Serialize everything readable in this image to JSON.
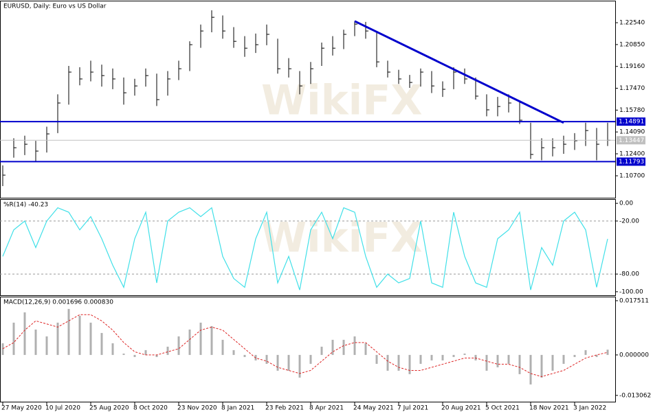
{
  "watermark": "WikiFX",
  "chart_data": [
    {
      "type": "ohlc",
      "title": "EURUSD, Daily:  Euro vs US Dollar",
      "categories": [
        "27 May 2020",
        null,
        null,
        null,
        "10 Jul 2020",
        null,
        null,
        null,
        "25 Aug 2020",
        null,
        null,
        null,
        "8 Oct 2020",
        null,
        null,
        null,
        "23 Nov 2020",
        null,
        null,
        null,
        "8 Jan 2021",
        null,
        null,
        null,
        "23 Feb 2021",
        null,
        null,
        null,
        "8 Apr 2021",
        null,
        null,
        null,
        "24 May 2021",
        null,
        null,
        null,
        "7 Jul 2021",
        null,
        null,
        null,
        "20 Aug 2021",
        null,
        null,
        null,
        "5 Oct 2021",
        null,
        null,
        null,
        "18 Nov 2021",
        null,
        null,
        null,
        "3 Jan 2022",
        null,
        null,
        null
      ],
      "high": [
        1.115,
        1.136,
        1.138,
        1.134,
        1.145,
        1.17,
        1.192,
        1.191,
        1.196,
        1.193,
        1.19,
        1.183,
        1.182,
        1.19,
        1.186,
        1.188,
        1.196,
        1.211,
        1.224,
        1.235,
        1.231,
        1.222,
        1.215,
        1.217,
        1.224,
        1.213,
        1.198,
        1.188,
        1.195,
        1.21,
        1.215,
        1.22,
        1.2266,
        1.226,
        1.218,
        1.196,
        1.189,
        1.185,
        1.19,
        1.188,
        1.18,
        1.191,
        1.19,
        1.183,
        1.17,
        1.168,
        1.17,
        1.165,
        1.148,
        1.136,
        1.136,
        1.138,
        1.14,
        1.148,
        1.144,
        1.148
      ],
      "low": [
        1.099,
        1.121,
        1.123,
        1.118,
        1.125,
        1.14,
        1.162,
        1.177,
        1.18,
        1.176,
        1.174,
        1.162,
        1.169,
        1.176,
        1.161,
        1.169,
        1.181,
        1.188,
        1.206,
        1.218,
        1.213,
        1.206,
        1.199,
        1.202,
        1.208,
        1.186,
        1.183,
        1.17,
        1.178,
        1.192,
        1.2,
        1.205,
        1.215,
        1.213,
        1.191,
        1.183,
        1.178,
        1.175,
        1.176,
        1.171,
        1.168,
        1.174,
        1.178,
        1.166,
        1.153,
        1.153,
        1.156,
        1.147,
        1.12,
        1.119,
        1.122,
        1.124,
        1.127,
        1.13,
        1.119,
        1.13
      ],
      "close": [
        1.1075,
        1.1287,
        1.1314,
        1.1261,
        1.1394,
        1.1633,
        1.1872,
        1.1819,
        1.1872,
        1.1845,
        1.1819,
        1.1712,
        1.1765,
        1.1845,
        1.1659,
        1.1819,
        1.1898,
        1.2084,
        1.219,
        1.2296,
        1.219,
        1.211,
        1.2057,
        1.2084,
        1.2164,
        1.1898,
        1.1898,
        1.1765,
        1.1898,
        1.2057,
        1.2057,
        1.2164,
        1.2243,
        1.219,
        1.1951,
        1.1872,
        1.1819,
        1.1792,
        1.1872,
        1.1765,
        1.1739,
        1.1872,
        1.1819,
        1.1686,
        1.158,
        1.1606,
        1.1633,
        1.15,
        1.1235,
        1.1287,
        1.1287,
        1.1314,
        1.1341,
        1.142,
        1.1314,
        1.13447
      ],
      "color": "#000000",
      "levels": [
        1.14891,
        1.11793
      ],
      "level_color": "#0000cc",
      "trendline": {
        "x": [
          32,
          51
        ],
        "values": [
          1.2266,
          1.148
        ]
      },
      "ylim": [
        1.09,
        1.2419
      ],
      "yticks": [
        {
          "value": 1.2254,
          "label": "1.22540"
        },
        {
          "value": 1.2085,
          "label": "1.20850"
        },
        {
          "value": 1.1916,
          "label": "1.19160"
        },
        {
          "value": 1.1747,
          "label": "1.17470"
        },
        {
          "value": 1.1578,
          "label": "1.15780"
        },
        {
          "value": 1.1409,
          "label": "1.14090"
        },
        {
          "value": 1.124,
          "label": "1.12400"
        },
        {
          "value": 1.107,
          "label": "1.10700"
        }
      ]
    },
    {
      "type": "line",
      "title": "%R(14) -40.23",
      "color": "#40e0e8",
      "values": [
        -60,
        -30,
        -20,
        -50,
        -20,
        -5,
        -10,
        -30,
        -15,
        -40,
        -70,
        -95,
        -40,
        -10,
        -90,
        -20,
        -10,
        -5,
        -15,
        -5,
        -60,
        -85,
        -95,
        -40,
        -10,
        -90,
        -60,
        -98,
        -30,
        -10,
        -40,
        -5,
        -10,
        -60,
        -95,
        -80,
        -90,
        -85,
        -20,
        -90,
        -95,
        -10,
        -60,
        -90,
        -95,
        -40,
        -30,
        -10,
        -98,
        -50,
        -70,
        -20,
        -10,
        -30,
        -95,
        -40.23
      ],
      "levels": [
        -20,
        -80
      ],
      "ylim": [
        -104,
        4
      ],
      "yticks": [
        {
          "value": 0,
          "label": "0.00"
        },
        {
          "value": -20,
          "label": "-20.00"
        },
        {
          "value": -80,
          "label": "-80.00"
        },
        {
          "value": -100,
          "label": "-100.00"
        }
      ]
    },
    {
      "type": "macd",
      "title": "MACD(12,26,9) 0.001696 0.000830",
      "histogram": [
        0.00377,
        0.01042,
        0.01375,
        0.0082,
        0.00599,
        0.01042,
        0.01485,
        0.01264,
        0.01042,
        0.00709,
        0.00377,
        0.00044,
        -0.00067,
        0.00155,
        -0.00067,
        0.00266,
        0.00599,
        0.0082,
        0.01042,
        0.00931,
        0.00488,
        0.00155,
        -0.00067,
        -0.00177,
        -0.00288,
        -0.0051,
        -0.0051,
        -0.00732,
        -0.00288,
        0.00266,
        0.00488,
        0.00488,
        0.00599,
        0.00377,
        -0.00288,
        -0.0051,
        -0.0051,
        -0.00621,
        -0.00288,
        -0.00177,
        -0.00177,
        -0.00067,
        0.00044,
        -0.00177,
        -0.0051,
        -0.00399,
        -0.00288,
        -0.00621,
        -0.00953,
        -0.00732,
        -0.0051,
        -0.00288,
        -0.00067,
        0.00155,
        -0.00067,
        0.001696
      ],
      "signal": [
        0.002,
        0.004,
        0.008,
        0.011,
        0.01,
        0.009,
        0.011,
        0.013,
        0.013,
        0.011,
        0.008,
        0.004,
        0.001,
        0,
        0,
        0.001,
        0.002,
        0.005,
        0.008,
        0.009,
        0.008,
        0.005,
        0.002,
        -0.001,
        -0.002,
        -0.004,
        -0.005,
        -0.006,
        -0.005,
        -0.002,
        0.001,
        0.003,
        0.004,
        0.004,
        0.001,
        -0.002,
        -0.004,
        -0.005,
        -0.005,
        -0.004,
        -0.003,
        -0.002,
        -0.001,
        -0.001,
        -0.002,
        -0.003,
        -0.003,
        -0.004,
        -0.006,
        -0.007,
        -0.006,
        -0.005,
        -0.003,
        -0.001,
        0,
        0.00083
      ],
      "histogram_color": "#b0b0b0",
      "signal_color": "#dd2222",
      "ylim": [
        -0.0151,
        0.0186
      ],
      "yticks": [
        0.017511,
        {
          "value": 0,
          "label": "0.000000"
        },
        -0.013062
      ]
    }
  ]
}
